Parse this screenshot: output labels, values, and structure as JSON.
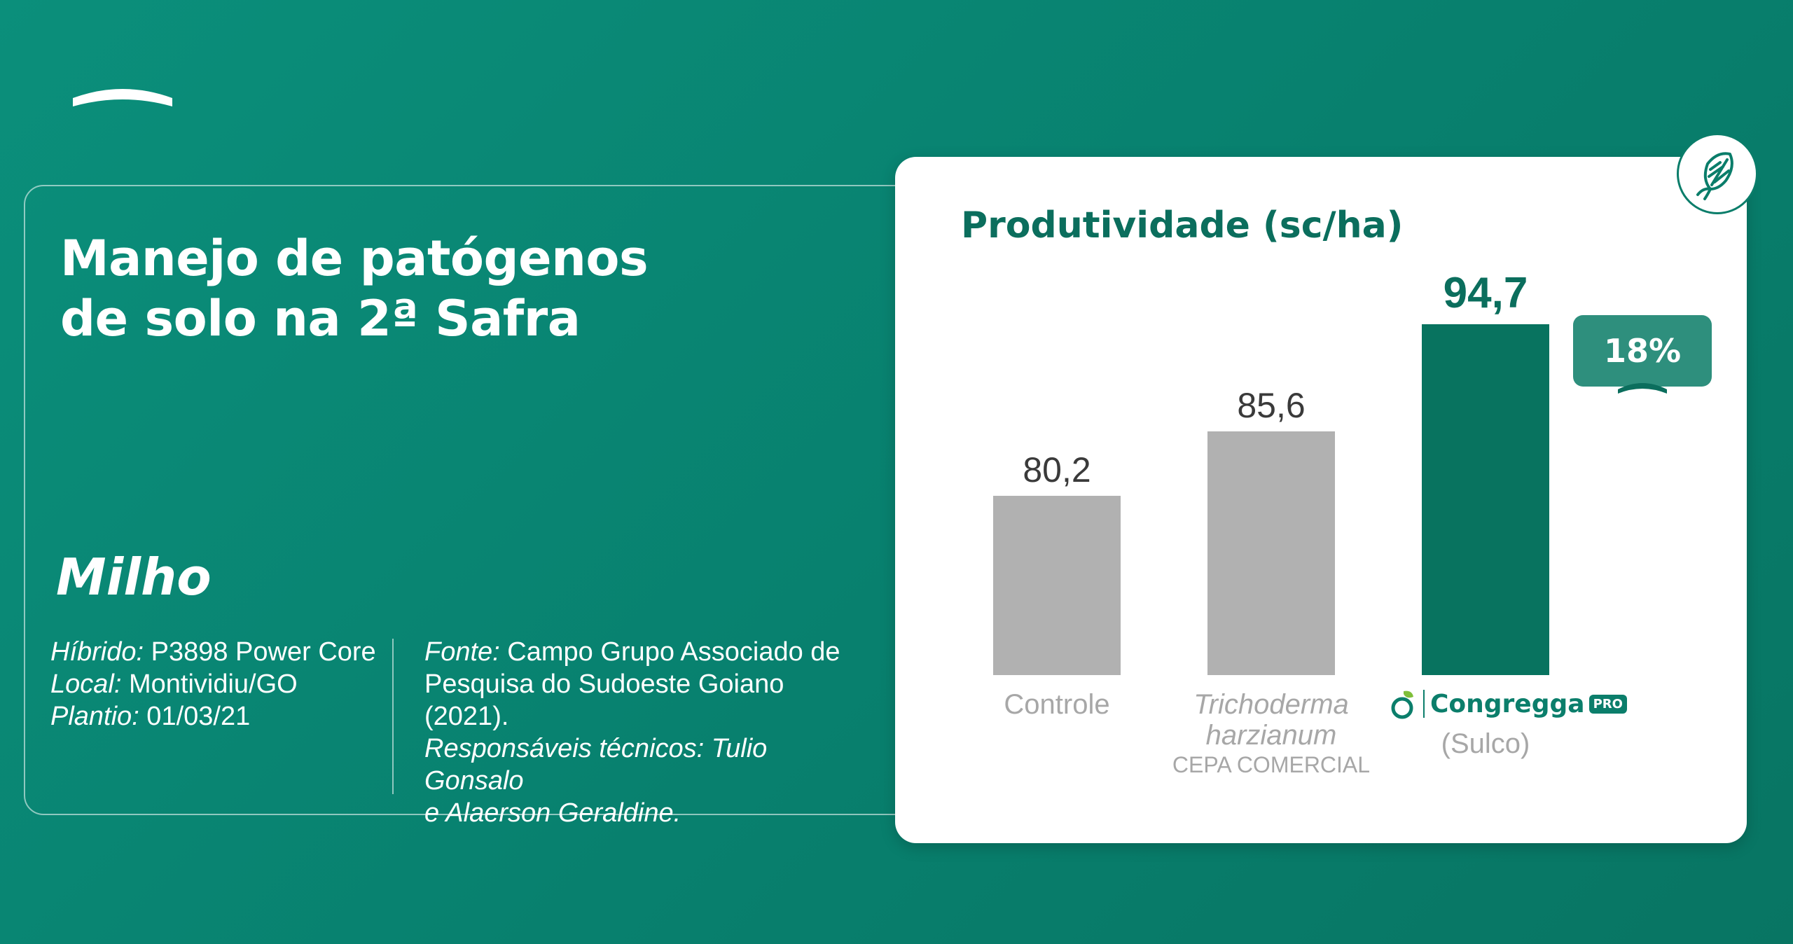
{
  "header": {
    "title_line1": "Manejo de patógenos",
    "title_line2": "de solo na 2ª Safra"
  },
  "crop": "Milho",
  "details_left": {
    "hibrido_label": "Híbrido:",
    "hibrido_value": " P3898 Power Core",
    "local_label": "Local:",
    "local_value": " Montividiu/GO",
    "plantio_label": "Plantio:",
    "plantio_value": " 01/03/21"
  },
  "details_right": {
    "fonte_label": "Fonte:",
    "fonte_line1": " Campo Grupo Associado de",
    "fonte_line2": "Pesquisa do Sudoeste Goiano",
    "fonte_line3": "(2021).",
    "resp_line1": "Responsáveis técnicos: Tulio Gonsalo",
    "resp_line2": "e Alaerson Geraldine."
  },
  "icons": {
    "corn": "corn-icon",
    "brand": "congregga-leaf-icon"
  },
  "brand": {
    "name": "Congregga",
    "pro": "PRO"
  },
  "colors": {
    "background": "#0b8f7b",
    "bar_gray": "#b1b1b1",
    "bar_highlight": "#08735f",
    "accent_text": "#0b6e5d"
  },
  "chart_data": {
    "type": "bar",
    "title": "Produtividade (sc/ha)",
    "categories": [
      "Controle",
      "Trichoderma harzianum",
      "Congregga PRO"
    ],
    "category_line1": [
      "Controle",
      "Trichoderma",
      "Congregga PRO"
    ],
    "category_line2": [
      "",
      "harzianum",
      "(Sulco)"
    ],
    "category_sub": [
      "",
      "CEPA COMERCIAL",
      ""
    ],
    "values": [
      80.2,
      85.6,
      94.7
    ],
    "value_labels": [
      "80,2",
      "85,6",
      "94,7"
    ],
    "highlight_index": 2,
    "difference_label": "18%",
    "ylim": [
      65,
      97
    ],
    "grid": false,
    "legend": "none"
  }
}
